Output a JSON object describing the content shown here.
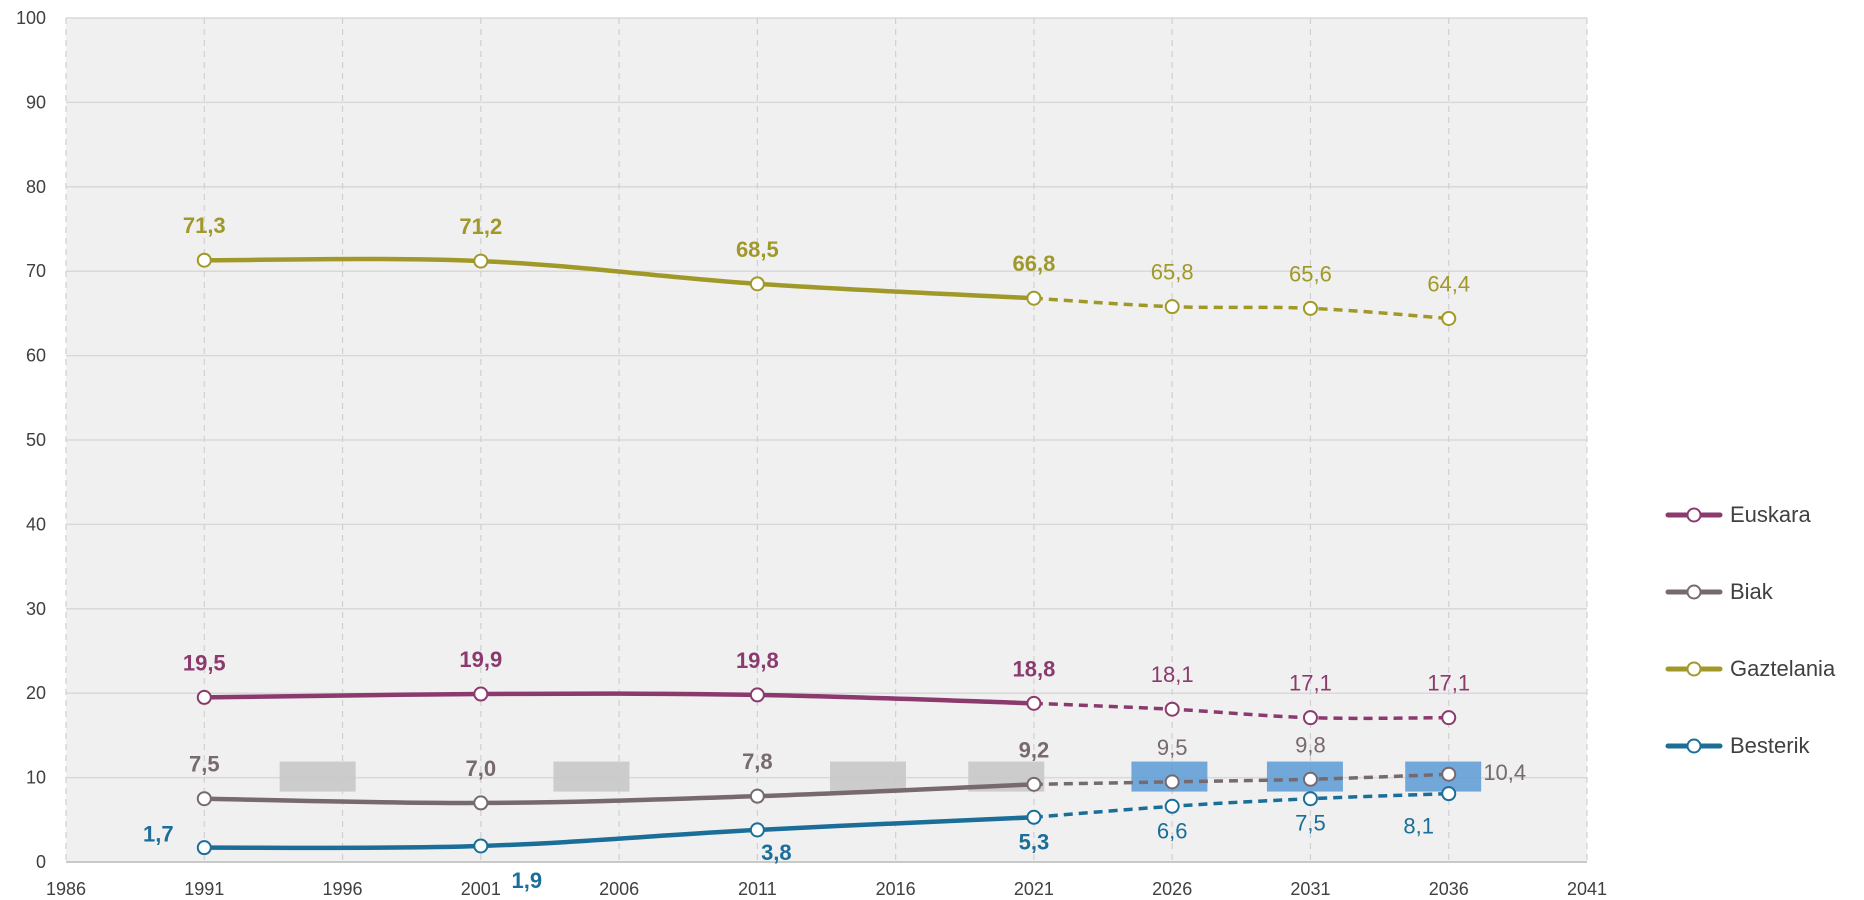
{
  "chart_data": {
    "type": "line",
    "x": [
      1991,
      2001,
      2011,
      2021,
      2026,
      2031,
      2036
    ],
    "xlim": [
      1986,
      2041
    ],
    "xticks": [
      "1986",
      "1991",
      "1996",
      "2001",
      "2006",
      "2011",
      "2016",
      "2021",
      "2026",
      "2031",
      "2036",
      "2041"
    ],
    "ylim": [
      0,
      100
    ],
    "yticks": [
      "0",
      "10",
      "20",
      "30",
      "40",
      "50",
      "60",
      "70",
      "80",
      "90",
      "100"
    ],
    "grid": true,
    "observed_until": 2021,
    "legend_position": "right",
    "series": [
      {
        "name": "Euskara",
        "color": "#8B3A6E",
        "values": [
          19.5,
          19.9,
          19.8,
          18.8,
          18.1,
          17.1,
          17.1
        ],
        "labels": [
          "19,5",
          "19,9",
          "19,8",
          "18,8",
          "18,1",
          "17,1",
          "17,1"
        ]
      },
      {
        "name": "Biak",
        "color": "#766970",
        "values": [
          7.5,
          7.0,
          7.8,
          9.2,
          9.5,
          9.8,
          10.4
        ],
        "labels": [
          "7,5",
          "7,0",
          "7,8",
          "9,2",
          "9,5",
          "9,8",
          "10,4"
        ]
      },
      {
        "name": "Gaztelania",
        "color": "#A0992A",
        "values": [
          71.3,
          71.2,
          68.5,
          66.8,
          65.8,
          65.6,
          64.4
        ],
        "labels": [
          "71,3",
          "71,2",
          "68,5",
          "66,8",
          "65,8",
          "65,6",
          "64,4"
        ]
      },
      {
        "name": "Besterik",
        "color": "#1A6E98",
        "values": [
          1.7,
          1.9,
          3.8,
          5.3,
          6.6,
          7.5,
          8.1
        ],
        "labels": [
          "1,7",
          "1,9",
          "3,8",
          "5,3",
          "6,6",
          "7,5",
          "8,1"
        ]
      }
    ],
    "legend_order": [
      "Euskara",
      "Biak",
      "Gaztelania",
      "Besterik"
    ],
    "background_color": "#F0F0F0",
    "highlight_gray": "#C8C8C8",
    "highlight_blue": "#5B9BD5"
  }
}
